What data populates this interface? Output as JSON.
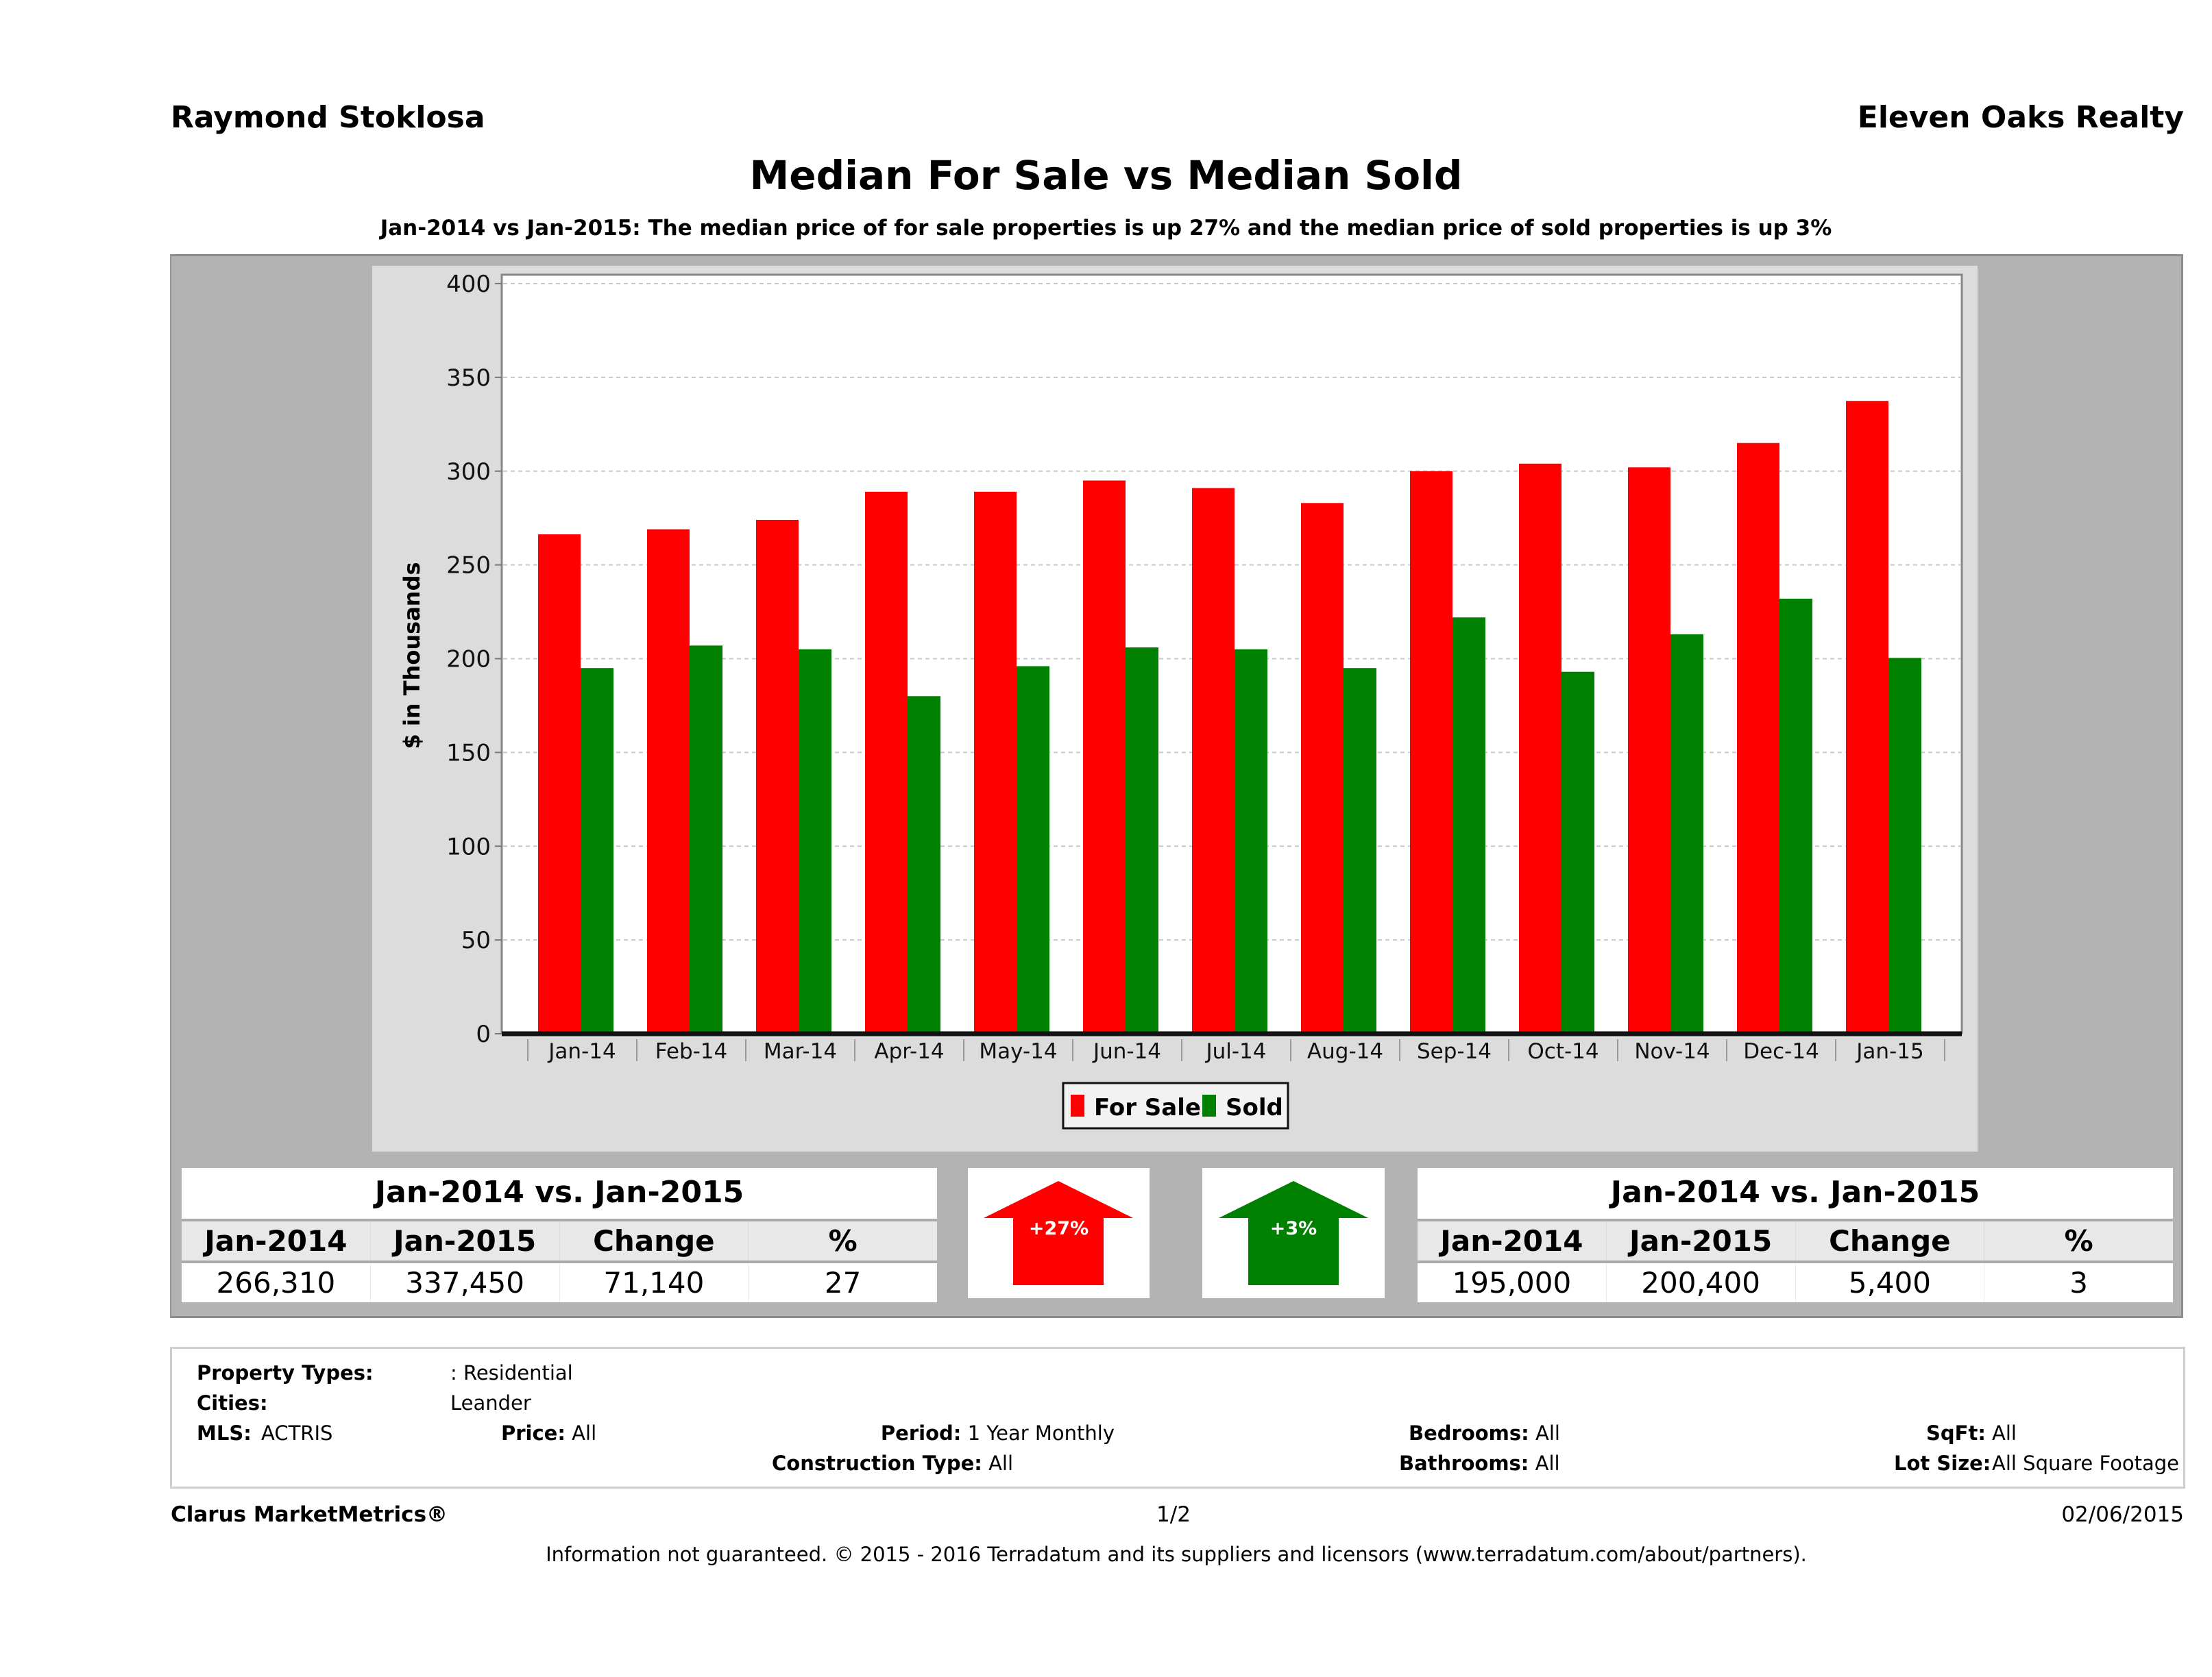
{
  "header": {
    "agent_name": "Raymond Stoklosa",
    "company": "Eleven Oaks Realty",
    "title": "Median For Sale vs Median Sold",
    "subtitle": "Jan-2014 vs Jan-2015: The median price of for sale properties is up 27% and the median price of sold properties is up 3%"
  },
  "colors": {
    "for_sale": "#ff0000",
    "sold": "#008000",
    "panel": "#b3b3b3",
    "chart_bg": "#dcdcdc"
  },
  "chart_data": {
    "type": "bar",
    "title": "Median For Sale vs Median Sold",
    "xlabel": "",
    "ylabel": "$ in Thousands",
    "ylim": [
      0,
      400
    ],
    "yticks": [
      "0",
      "50",
      "100",
      "150",
      "200",
      "250",
      "300",
      "350",
      "400"
    ],
    "ytick_values": [
      0,
      50,
      100,
      150,
      200,
      250,
      300,
      350,
      400
    ],
    "grid": true,
    "legend_position": "bottom-center",
    "categories": [
      "Jan-14",
      "Feb-14",
      "Mar-14",
      "Apr-14",
      "May-14",
      "Jun-14",
      "Jul-14",
      "Aug-14",
      "Sep-14",
      "Oct-14",
      "Nov-14",
      "Dec-14",
      "Jan-15"
    ],
    "series": [
      {
        "name": "For Sale",
        "color": "#ff0000",
        "values": [
          266.31,
          269,
          274,
          289,
          289,
          295,
          291,
          283,
          300,
          304,
          302,
          315,
          337.45
        ]
      },
      {
        "name": "Sold",
        "color": "#008000",
        "values": [
          195,
          207,
          205,
          180,
          196,
          206,
          205,
          195,
          222,
          193,
          213,
          232,
          200.4
        ]
      }
    ]
  },
  "for_sale_table": {
    "title": "Jan-2014 vs. Jan-2015",
    "headers": [
      "Jan-2014",
      "Jan-2015",
      "Change",
      "%"
    ],
    "values": [
      "266,310",
      "337,450",
      "71,140",
      "27"
    ]
  },
  "sold_table": {
    "title": "Jan-2014 vs. Jan-2015",
    "headers": [
      "Jan-2014",
      "Jan-2015",
      "Change",
      "%"
    ],
    "values": [
      "195,000",
      "200,400",
      "5,400",
      "3"
    ]
  },
  "arrows": {
    "for_sale": {
      "label": "+27%",
      "direction": "up",
      "color": "#ff0000"
    },
    "sold": {
      "label": "+3%",
      "direction": "up",
      "color": "#008000"
    }
  },
  "filters": {
    "property_types_label": "Property Types:",
    "property_types_value": ": Residential",
    "cities_label": "Cities:",
    "cities_value": "Leander",
    "mls_label": "MLS:",
    "mls_value": "ACTRIS",
    "price_label": "Price:",
    "price_value": "All",
    "period_label": "Period:",
    "period_value": "1 Year Monthly",
    "construction_label": "Construction Type:",
    "construction_value": "All",
    "bedrooms_label": "Bedrooms:",
    "bedrooms_value": "All",
    "bathrooms_label": "Bathrooms:",
    "bathrooms_value": "All",
    "sqft_label": "SqFt:",
    "sqft_value": "All",
    "lot_label": "Lot Size:",
    "lot_value": "All Square Footage"
  },
  "footer": {
    "brand": "Clarus MarketMetrics®",
    "page": "1/2",
    "date": "02/06/2015",
    "disclaimer": "Information not guaranteed. © 2015 - 2016 Terradatum and its suppliers and licensors (www.terradatum.com/about/partners)."
  }
}
